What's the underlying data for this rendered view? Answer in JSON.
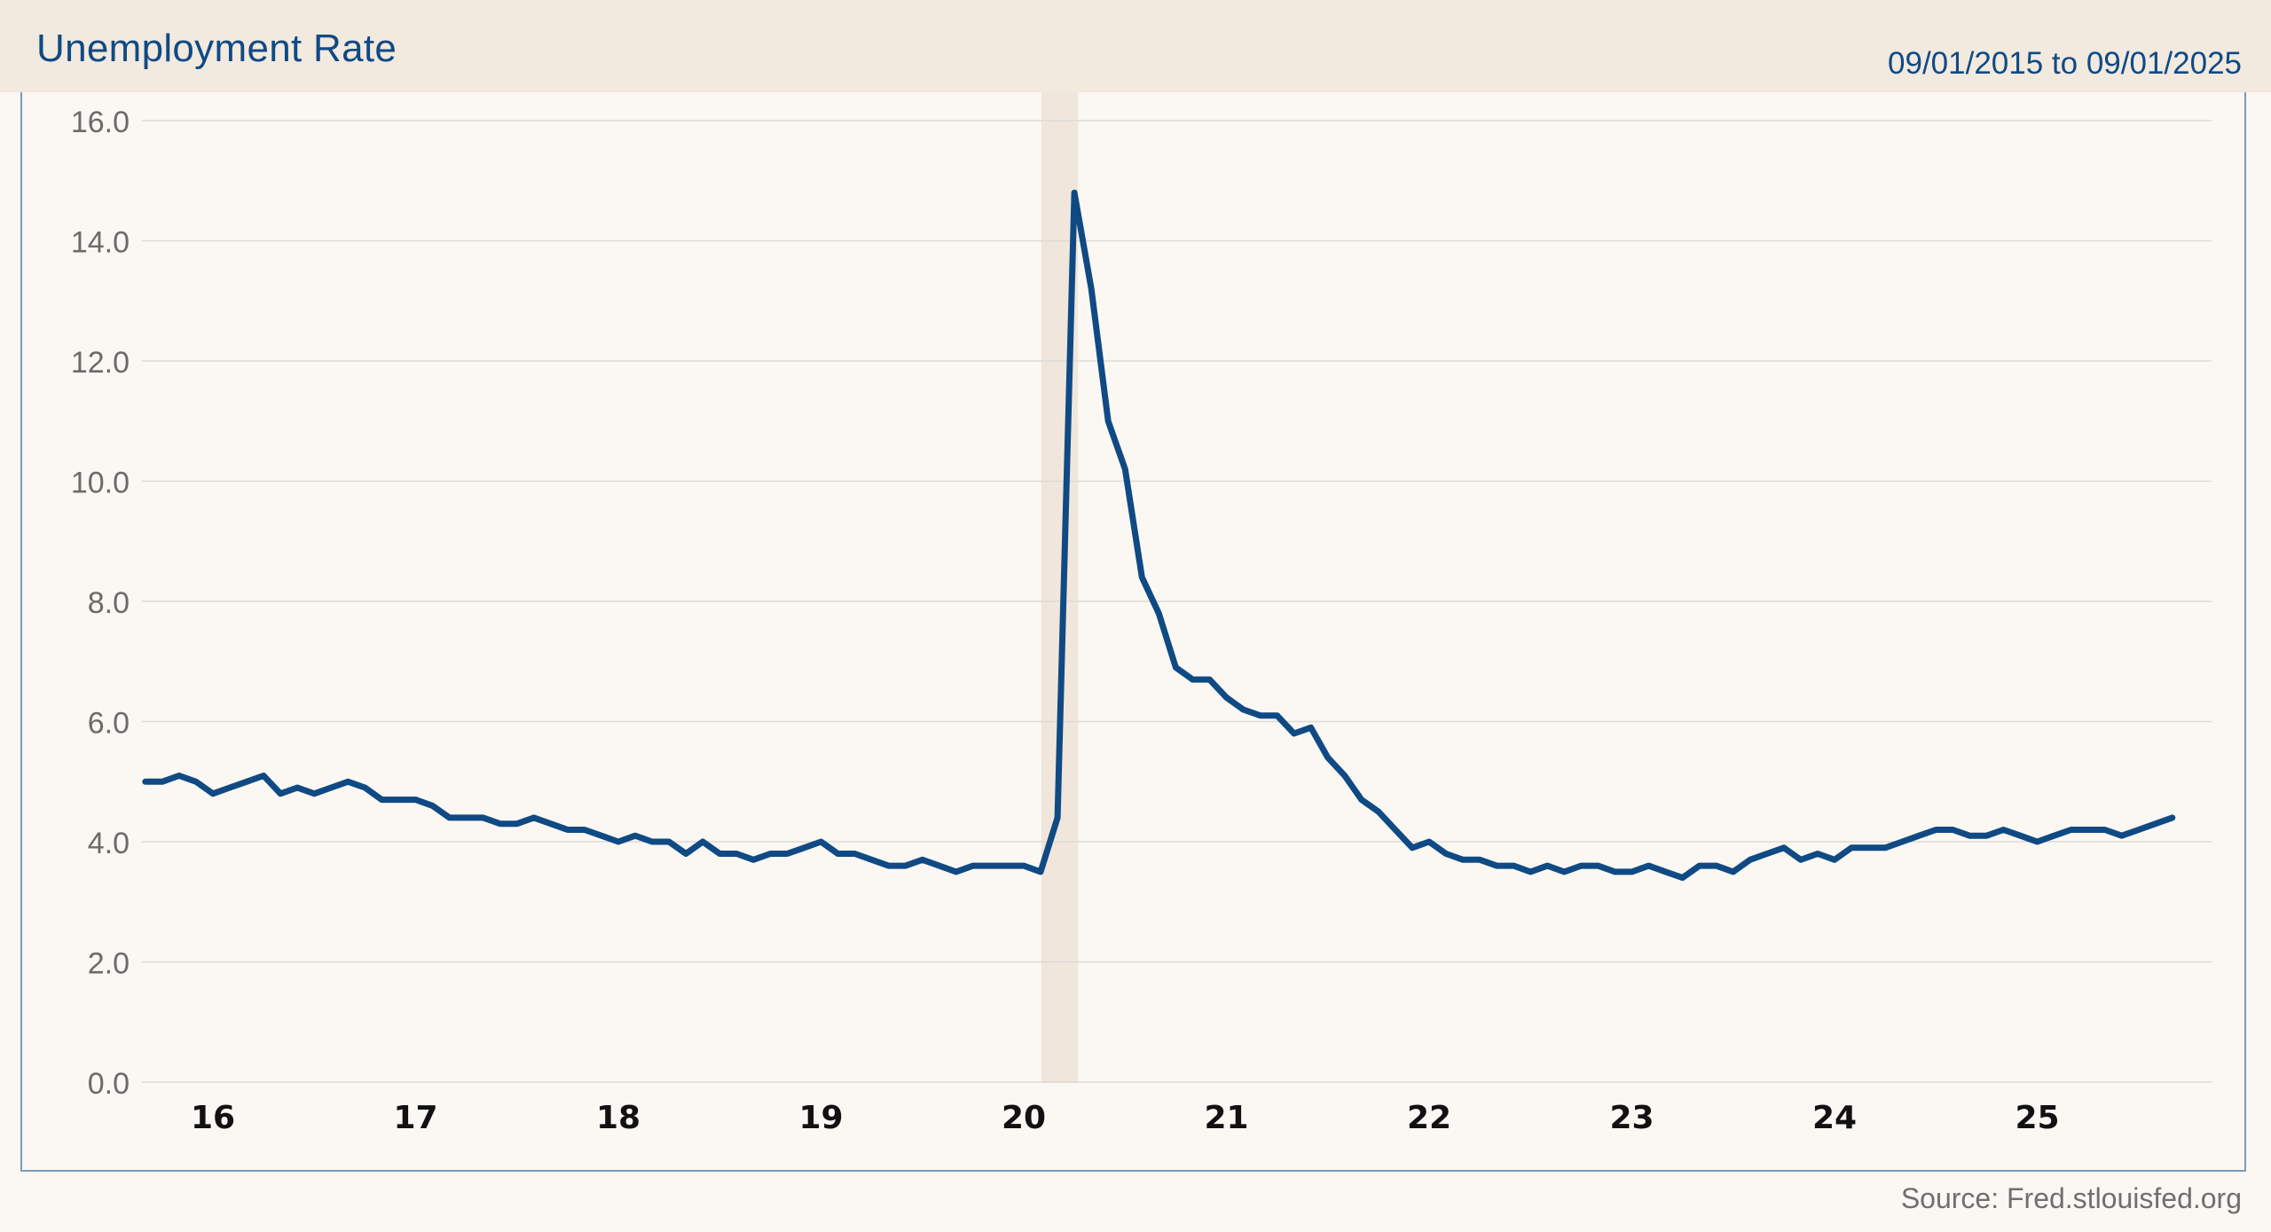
{
  "header": {
    "title": "Unemployment Rate",
    "date_range": "09/01/2015 to 09/01/2025"
  },
  "footer": {
    "source": "Source: Fred.stlouisfed.org"
  },
  "colors": {
    "line": "#0f4a84",
    "header_background": "#f2e9df",
    "recession_shade": "#f0e6dc",
    "gridline": "#dedad5"
  },
  "chart_data": {
    "type": "line",
    "title": "Unemployment Rate",
    "xlabel": "",
    "ylabel": "",
    "ylim": [
      0,
      16
    ],
    "yticks": [
      "0.0",
      "2.0",
      "4.0",
      "6.0",
      "8.0",
      "10.0",
      "12.0",
      "14.0",
      "16.0"
    ],
    "xticks": [
      "16",
      "17",
      "18",
      "19",
      "20",
      "21",
      "22",
      "23",
      "24",
      "25"
    ],
    "grid": true,
    "recession_shading": {
      "start": "2020-02",
      "end": "2020-04"
    },
    "series": [
      {
        "x_start": "2015-09",
        "frequency": "monthly",
        "values": [
          5.0,
          5.0,
          5.1,
          5.0,
          4.8,
          4.9,
          5.0,
          5.1,
          4.8,
          4.9,
          4.8,
          4.9,
          5.0,
          4.9,
          4.7,
          4.7,
          4.7,
          4.6,
          4.4,
          4.4,
          4.4,
          4.3,
          4.3,
          4.4,
          4.3,
          4.2,
          4.2,
          4.1,
          4.0,
          4.1,
          4.0,
          4.0,
          3.8,
          4.0,
          3.8,
          3.8,
          3.7,
          3.8,
          3.8,
          3.9,
          4.0,
          3.8,
          3.8,
          3.7,
          3.6,
          3.6,
          3.7,
          3.6,
          3.5,
          3.6,
          3.6,
          3.6,
          3.6,
          3.5,
          4.4,
          14.8,
          13.2,
          11.0,
          10.2,
          8.4,
          7.8,
          6.9,
          6.7,
          6.7,
          6.4,
          6.2,
          6.1,
          6.1,
          5.8,
          5.9,
          5.4,
          5.1,
          4.7,
          4.5,
          4.2,
          3.9,
          4.0,
          3.8,
          3.7,
          3.7,
          3.6,
          3.6,
          3.5,
          3.6,
          3.5,
          3.6,
          3.6,
          3.5,
          3.5,
          3.6,
          3.5,
          3.4,
          3.6,
          3.6,
          3.5,
          3.7,
          3.8,
          3.9,
          3.7,
          3.8,
          3.7,
          3.9,
          3.9,
          3.9,
          4.0,
          4.1,
          4.2,
          4.2,
          4.1,
          4.1,
          4.2,
          4.1,
          4.0,
          4.1,
          4.2,
          4.2,
          4.2,
          4.1,
          4.2,
          4.3,
          4.4
        ]
      }
    ]
  }
}
